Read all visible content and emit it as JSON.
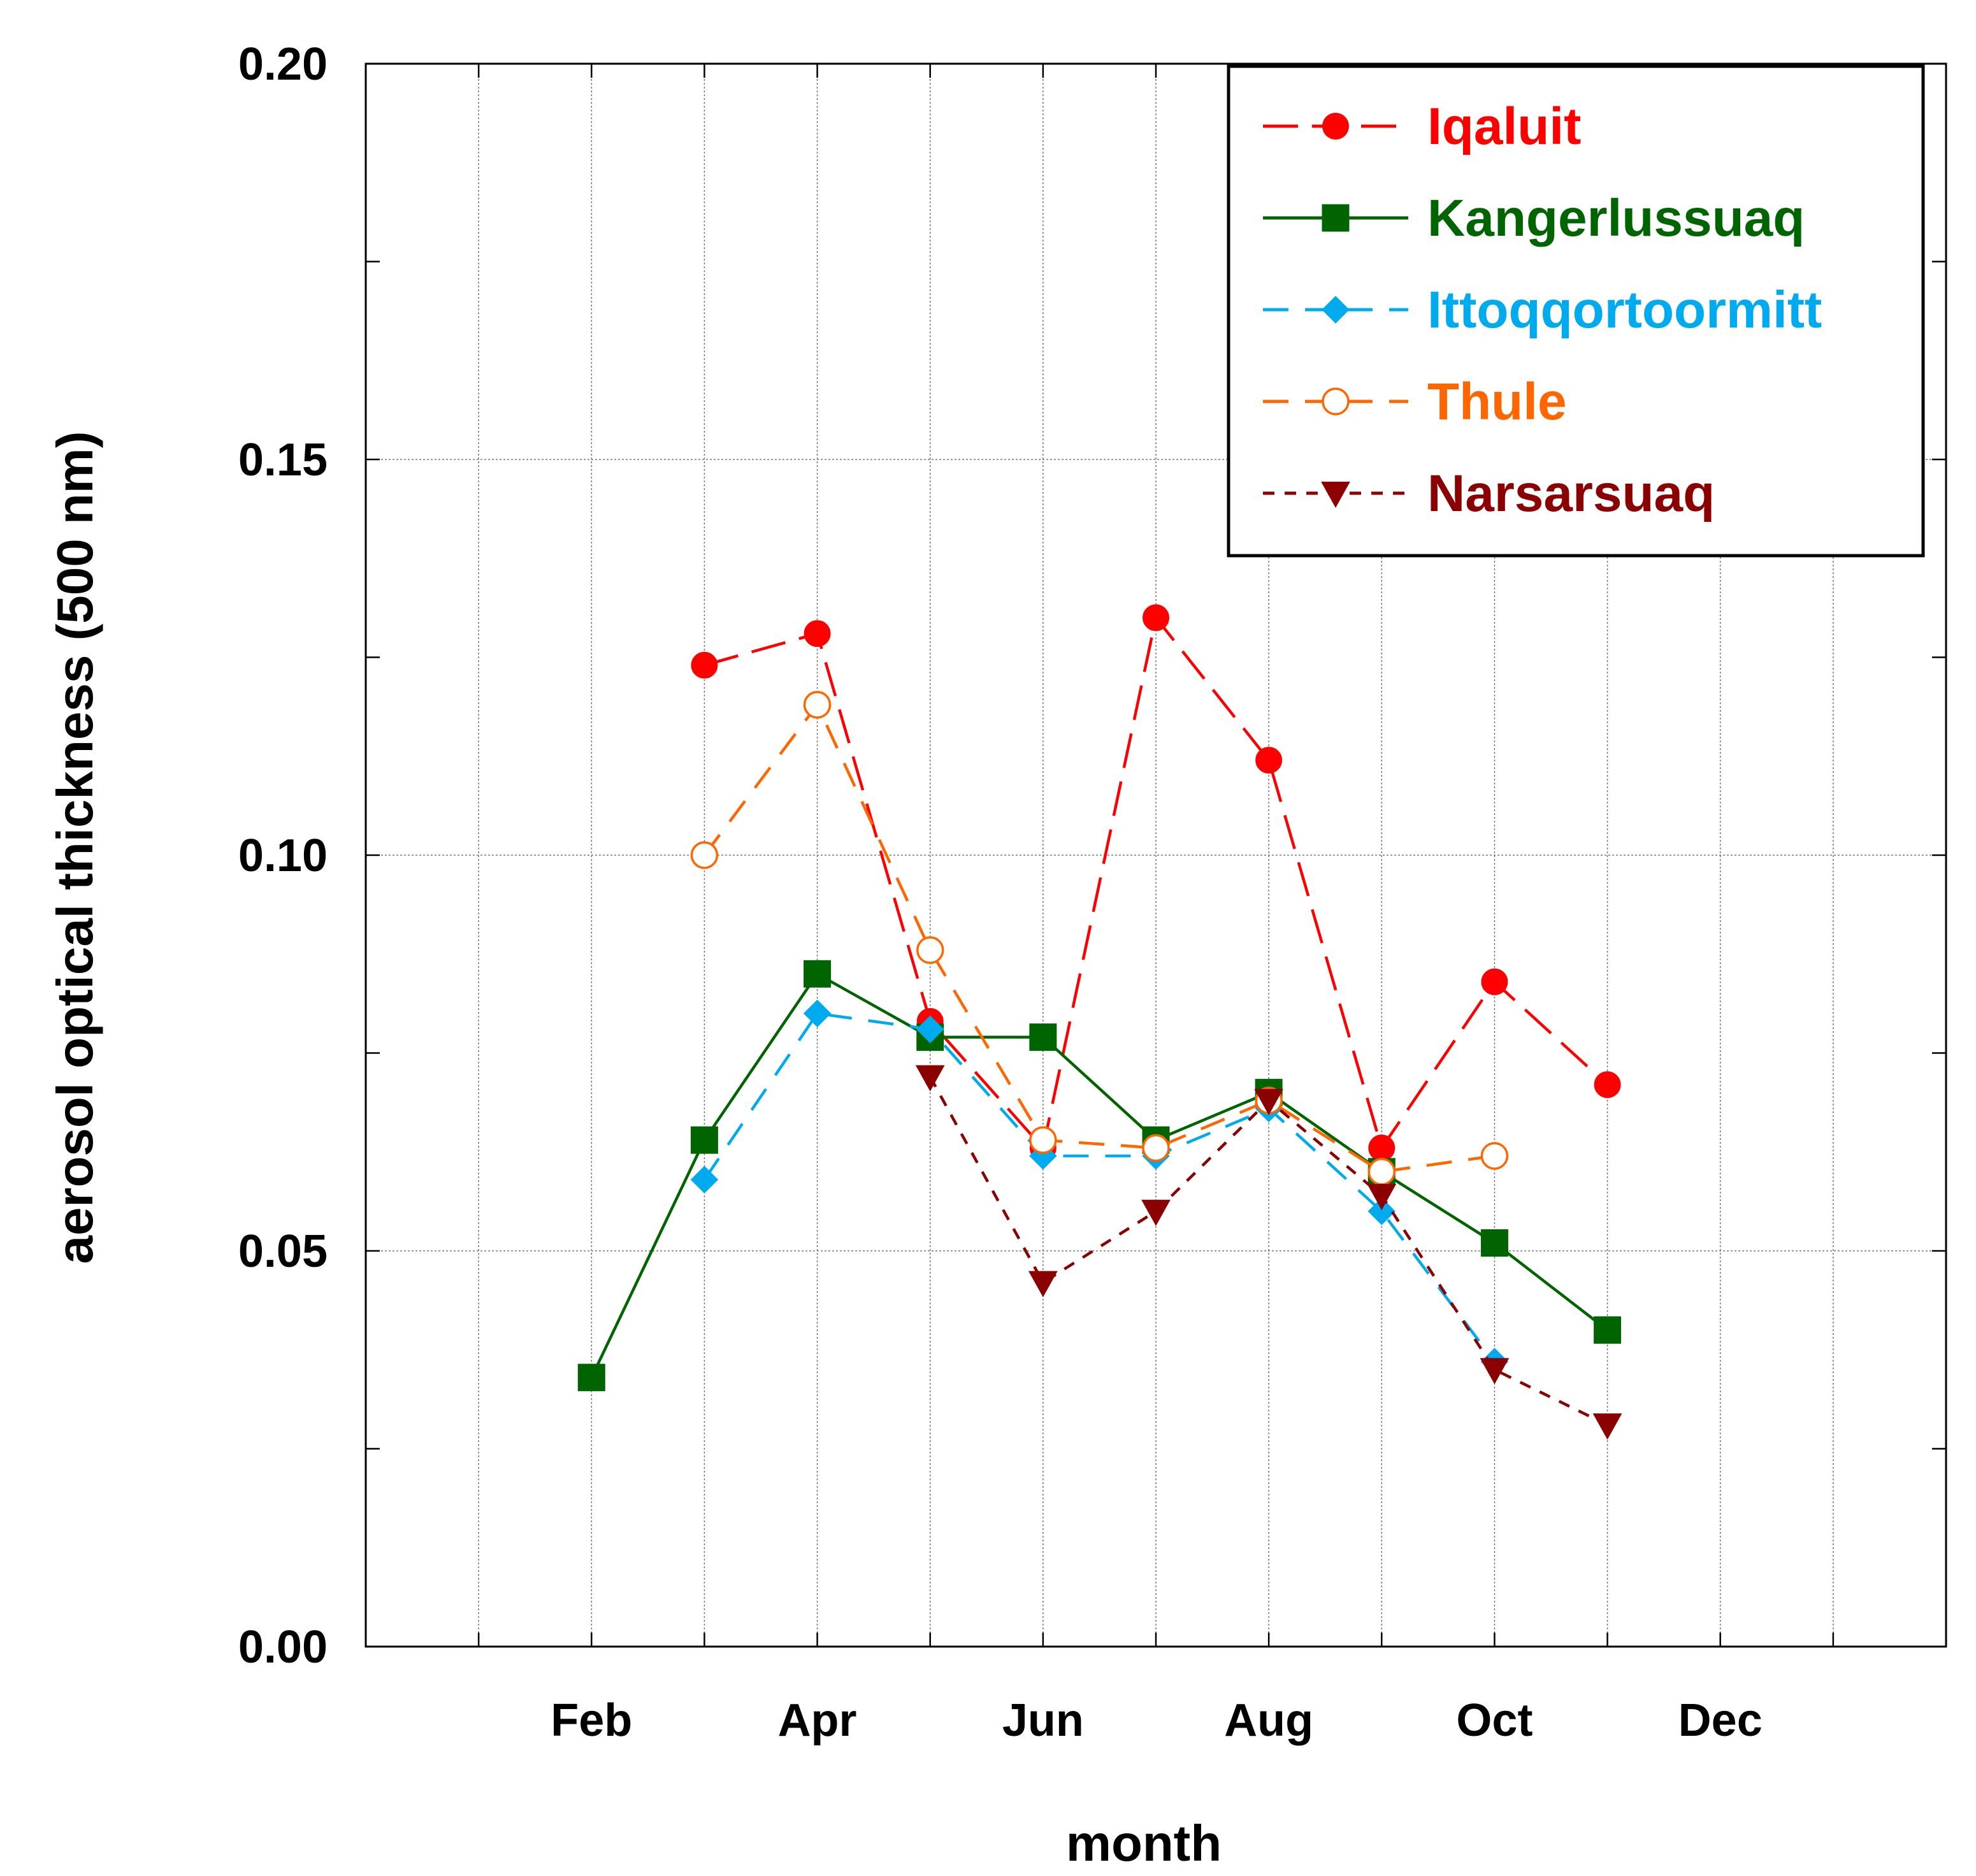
{
  "chart_data": {
    "type": "line",
    "title": "",
    "xlabel": "month",
    "ylabel": "aerosol optical thickness (500 nm)",
    "xlim": [
      0,
      14
    ],
    "ylim": [
      0,
      0.2
    ],
    "grid": true,
    "x_tick_labels": [
      {
        "x": 2,
        "label": "Feb"
      },
      {
        "x": 4,
        "label": "Apr"
      },
      {
        "x": 6,
        "label": "Jun"
      },
      {
        "x": 8,
        "label": "Aug"
      },
      {
        "x": 10,
        "label": "Oct"
      },
      {
        "x": 12,
        "label": "Dec"
      }
    ],
    "y_tick_labels": [
      "0.00",
      "0.05",
      "0.10",
      "0.15",
      "0.20"
    ],
    "legend_position": "top-right",
    "series": [
      {
        "name": "Iqaluit",
        "color": "#ff0000",
        "marker": "circle-filled",
        "dash": "long-dash",
        "x": [
          3,
          4,
          5,
          6,
          7,
          8,
          9,
          10,
          11
        ],
        "values": [
          0.124,
          0.128,
          0.079,
          0.063,
          0.13,
          0.112,
          0.063,
          0.084,
          0.071
        ]
      },
      {
        "name": "Kangerlussuaq",
        "color": "#006400",
        "marker": "square-filled",
        "dash": "solid",
        "x": [
          2,
          3,
          4,
          5,
          6,
          7,
          8,
          9,
          10,
          11
        ],
        "values": [
          0.034,
          0.064,
          0.085,
          0.077,
          0.077,
          0.064,
          0.07,
          0.06,
          0.051,
          0.04
        ]
      },
      {
        "name": "Ittoqqortoormitt",
        "color": "#00aaee",
        "marker": "diamond-filled",
        "dash": "dash",
        "x": [
          3,
          4,
          5,
          6,
          7,
          8,
          9,
          10
        ],
        "values": [
          0.059,
          0.08,
          0.078,
          0.062,
          0.062,
          0.068,
          0.055,
          0.036
        ]
      },
      {
        "name": "Thule",
        "color": "#ff6600",
        "marker": "circle-open",
        "dash": "dash",
        "x": [
          3,
          4,
          5,
          6,
          7,
          8,
          9,
          10
        ],
        "values": [
          0.1,
          0.119,
          0.088,
          0.064,
          0.063,
          0.069,
          0.06,
          0.062
        ]
      },
      {
        "name": "Narsarsuaq",
        "color": "#8b0000",
        "marker": "triangle-down-filled",
        "dash": "short-dash",
        "x": [
          5,
          6,
          7,
          8,
          9,
          10,
          11
        ],
        "values": [
          0.072,
          0.046,
          0.055,
          0.069,
          0.057,
          0.035,
          0.028
        ]
      }
    ]
  }
}
